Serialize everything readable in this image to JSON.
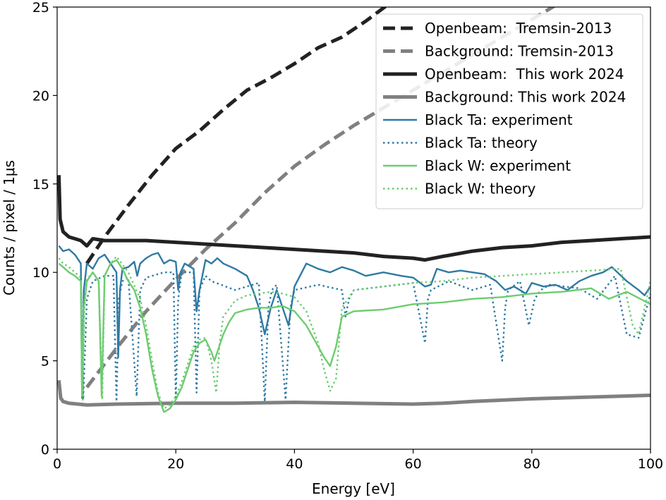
{
  "chart_data": {
    "type": "line",
    "title": "",
    "xlabel": "Energy [eV]",
    "ylabel": "Counts / pixel / 1μs",
    "xlim": [
      0,
      100
    ],
    "ylim": [
      0,
      25
    ],
    "x_ticks": [
      0,
      20,
      40,
      60,
      80,
      100
    ],
    "y_ticks": [
      0,
      5,
      10,
      15,
      20,
      25
    ],
    "legend_position": "top-right",
    "series": [
      {
        "name": "Openbeam:  Tremsin-2013",
        "color": "#222222",
        "style": "dashed",
        "width": "thick",
        "x": [
          5,
          8,
          12,
          16,
          20,
          24,
          28,
          32,
          36,
          40,
          44,
          48,
          52,
          56
        ],
        "y": [
          10.5,
          12.0,
          13.8,
          15.5,
          17.0,
          18.0,
          19.2,
          20.3,
          21.0,
          21.8,
          22.7,
          23.3,
          24.2,
          25.2
        ]
      },
      {
        "name": "Background: Tremsin-2013",
        "color": "#808080",
        "style": "dashed",
        "width": "thick",
        "x": [
          5,
          10,
          15,
          20,
          25,
          30,
          35,
          40,
          45,
          50,
          55,
          60,
          65,
          70,
          75,
          80,
          85
        ],
        "y": [
          3.5,
          5.7,
          7.8,
          9.6,
          11.3,
          12.8,
          14.5,
          16.0,
          17.2,
          18.3,
          19.3,
          20.3,
          21.3,
          22.3,
          23.3,
          24.3,
          25.3
        ]
      },
      {
        "name": "Openbeam:  This work 2024",
        "color": "#222222",
        "style": "solid",
        "width": "thick",
        "x": [
          0.3,
          0.5,
          1,
          2,
          3,
          4,
          5,
          6,
          8,
          10,
          15,
          20,
          25,
          30,
          35,
          40,
          45,
          50,
          55,
          60,
          62,
          65,
          70,
          75,
          80,
          85,
          90,
          95,
          100
        ],
        "y": [
          15.5,
          13.0,
          12.3,
          12.0,
          11.9,
          11.8,
          11.5,
          11.9,
          11.8,
          11.8,
          11.8,
          11.7,
          11.6,
          11.5,
          11.4,
          11.3,
          11.2,
          11.1,
          10.9,
          10.8,
          10.7,
          10.9,
          11.2,
          11.4,
          11.5,
          11.7,
          11.8,
          11.9,
          12.0
        ]
      },
      {
        "name": "Background: This work 2024",
        "color": "#808080",
        "style": "solid",
        "width": "thick",
        "x": [
          0.3,
          0.6,
          1,
          2,
          5,
          10,
          20,
          30,
          40,
          50,
          60,
          65,
          70,
          80,
          90,
          100
        ],
        "y": [
          3.9,
          2.9,
          2.7,
          2.6,
          2.5,
          2.55,
          2.6,
          2.6,
          2.65,
          2.6,
          2.55,
          2.6,
          2.7,
          2.85,
          2.95,
          3.05
        ]
      },
      {
        "name": "Black Ta: experiment",
        "color": "#2f7aa3",
        "style": "solid",
        "width": "normal",
        "x": [
          0.3,
          1,
          2,
          3,
          4,
          4.2,
          4.5,
          5,
          6,
          7,
          8,
          9,
          10,
          10.3,
          10.6,
          11,
          12,
          13,
          13.5,
          14,
          15,
          16,
          17,
          18,
          19,
          20,
          20.4,
          20.8,
          21.5,
          22,
          23,
          23.5,
          24,
          25,
          26,
          27,
          28,
          30,
          32,
          33,
          34,
          35,
          36,
          37,
          38,
          39,
          40,
          42,
          44,
          46,
          48,
          50,
          52,
          55,
          58,
          60,
          62,
          63,
          64,
          66,
          68,
          70,
          72,
          74,
          75.5,
          77,
          79,
          80,
          82,
          84,
          86,
          88,
          90,
          92,
          93.5,
          96,
          98,
          99,
          100
        ],
        "y": [
          11.5,
          11.2,
          11.3,
          11.0,
          10.5,
          2.9,
          9.0,
          10.5,
          10.2,
          10.8,
          11.0,
          10.5,
          10.0,
          5.2,
          9.0,
          10.2,
          10.3,
          10.6,
          9.8,
          10.5,
          10.8,
          11.0,
          11.1,
          10.5,
          10.7,
          10.6,
          9.0,
          10.0,
          10.5,
          10.4,
          10.2,
          7.8,
          9.0,
          10.7,
          10.5,
          10.8,
          10.5,
          10.2,
          9.8,
          9.0,
          8.0,
          6.5,
          8.0,
          9.0,
          8.0,
          7.0,
          9.2,
          10.5,
          10.2,
          10.0,
          10.3,
          10.1,
          9.8,
          10.0,
          9.8,
          9.7,
          9.2,
          9.3,
          10.2,
          10.0,
          10.1,
          10.0,
          9.9,
          9.5,
          9.0,
          9.2,
          8.8,
          9.4,
          9.2,
          9.3,
          9.0,
          9.5,
          9.8,
          10.0,
          10.3,
          9.5,
          9.0,
          8.7,
          9.2
        ]
      },
      {
        "name": "Black Ta: theory",
        "color": "#2f7aa3",
        "style": "dotted",
        "width": "normal",
        "x": [
          4,
          4.4,
          5,
          6,
          8,
          9.5,
          10,
          10.4,
          11,
          12,
          13.4,
          14,
          15,
          18,
          19.6,
          20,
          20.4,
          21,
          23,
          23.5,
          24,
          25,
          26,
          30,
          34,
          35,
          35.6,
          36.2,
          37,
          38.5,
          39.3,
          40,
          44,
          48,
          48.6,
          49.2,
          50,
          55,
          60,
          62,
          62.5,
          63,
          66,
          70,
          73,
          75,
          75.5,
          76,
          78,
          79.5,
          80.5,
          81.5,
          83,
          88,
          91,
          94,
          96,
          98,
          100
        ],
        "y": [
          9.4,
          2.8,
          8.5,
          9.5,
          9.8,
          9.8,
          2.7,
          8.5,
          9.5,
          9.7,
          3.0,
          9.0,
          9.7,
          10.0,
          10.0,
          2.8,
          8.5,
          10.0,
          10.0,
          3.2,
          9.0,
          9.8,
          9.5,
          9.0,
          9.4,
          2.7,
          8.0,
          9.0,
          9.3,
          2.8,
          8.0,
          9.0,
          9.3,
          9.0,
          7.5,
          8.5,
          9.0,
          9.2,
          9.4,
          6.0,
          8.5,
          9.0,
          9.5,
          9.0,
          9.3,
          5.0,
          8.0,
          9.0,
          9.5,
          7.0,
          8.5,
          9.0,
          9.3,
          9.1,
          8.5,
          9.8,
          6.5,
          6.3,
          8.8
        ]
      },
      {
        "name": "Black W: experiment",
        "color": "#6dcc70",
        "style": "solid",
        "width": "normal",
        "x": [
          0.3,
          1,
          2,
          3,
          4,
          4.2,
          4.5,
          5,
          6,
          7,
          7.5,
          8,
          9,
          10,
          11,
          12,
          13,
          14,
          15,
          16,
          17,
          18,
          19,
          20,
          21,
          22,
          23,
          24,
          25,
          26,
          26.5,
          27,
          28,
          29,
          30,
          32,
          34,
          36,
          38,
          40,
          42,
          44,
          45,
          46,
          47,
          48,
          50,
          55,
          60,
          65,
          70,
          75,
          80,
          85,
          90,
          93,
          96,
          100
        ],
        "y": [
          10.5,
          10.3,
          10.0,
          9.8,
          9.5,
          3.0,
          8.0,
          9.5,
          10.0,
          9.5,
          3.0,
          9.8,
          10.5,
          10.7,
          10.2,
          9.5,
          9.0,
          8.0,
          6.5,
          4.5,
          3.0,
          2.1,
          2.3,
          2.8,
          3.5,
          4.5,
          5.5,
          6.0,
          6.2,
          5.5,
          5.0,
          5.5,
          6.5,
          7.2,
          7.7,
          7.9,
          8.0,
          8.0,
          8.1,
          7.8,
          7.0,
          5.8,
          5.2,
          4.7,
          5.8,
          7.5,
          7.8,
          7.9,
          8.2,
          8.3,
          8.5,
          8.6,
          8.8,
          8.9,
          9.1,
          8.5,
          8.9,
          8.2
        ]
      },
      {
        "name": "Black W: theory",
        "color": "#6dcc70",
        "style": "dotted",
        "width": "normal",
        "x": [
          0.3,
          1,
          2,
          3,
          4,
          4.3,
          4.6,
          5,
          6,
          7,
          7.6,
          8,
          9,
          10,
          12,
          14,
          15,
          16,
          17,
          18,
          19,
          20,
          21,
          22,
          23,
          24,
          25,
          26,
          26.8,
          27.4,
          28,
          30,
          32,
          34,
          36,
          38,
          40,
          42,
          44,
          45,
          46,
          47,
          48,
          50,
          55,
          60,
          65,
          70,
          75,
          80,
          85,
          90,
          95,
          97,
          98,
          100
        ],
        "y": [
          10.8,
          10.5,
          10.3,
          10.0,
          9.7,
          2.8,
          8.0,
          9.6,
          10.0,
          9.5,
          2.8,
          9.8,
          10.5,
          10.9,
          10.0,
          8.5,
          7.0,
          5.0,
          3.2,
          2.3,
          2.5,
          3.0,
          3.8,
          4.8,
          5.8,
          6.2,
          6.3,
          5.0,
          3.2,
          6.0,
          7.5,
          8.4,
          8.7,
          8.8,
          8.9,
          8.8,
          8.6,
          7.8,
          6.0,
          4.5,
          3.3,
          4.0,
          8.0,
          9.0,
          9.2,
          9.4,
          9.5,
          9.7,
          9.8,
          9.9,
          10.0,
          10.1,
          10.2,
          7.0,
          6.5,
          9.5
        ]
      }
    ]
  }
}
